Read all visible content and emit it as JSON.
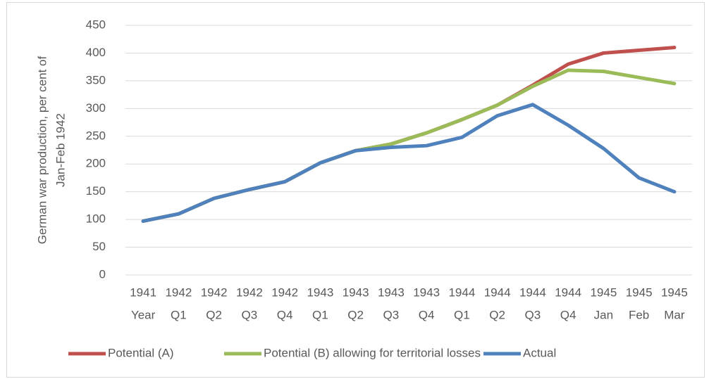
{
  "chart_data": {
    "type": "line",
    "y_label": [
      "German war production, per cent of",
      "Jan-Feb 1942"
    ],
    "categories": [
      [
        "1941",
        "Year"
      ],
      [
        "1942",
        "Q1"
      ],
      [
        "1942",
        "Q2"
      ],
      [
        "1942",
        "Q3"
      ],
      [
        "1942",
        "Q4"
      ],
      [
        "1943",
        "Q1"
      ],
      [
        "1943",
        "Q2"
      ],
      [
        "1943",
        "Q3"
      ],
      [
        "1943",
        "Q4"
      ],
      [
        "1944",
        "Q1"
      ],
      [
        "1944",
        "Q2"
      ],
      [
        "1944",
        "Q3"
      ],
      [
        "1944",
        "Q4"
      ],
      [
        "1945",
        "Jan"
      ],
      [
        "1945",
        "Feb"
      ],
      [
        "1945",
        "Mar"
      ]
    ],
    "series": [
      {
        "name": "Potential (A)",
        "color": "#c0504d",
        "values": [
          97,
          110,
          138,
          154,
          168,
          202,
          224,
          236,
          256,
          280,
          306,
          342,
          380,
          400,
          405,
          410
        ]
      },
      {
        "name": "Potential (B) allowing for territorial losses",
        "color": "#9bbb59",
        "values": [
          97,
          110,
          138,
          154,
          168,
          202,
          224,
          236,
          256,
          280,
          306,
          340,
          369,
          367,
          356,
          345
        ]
      },
      {
        "name": "Actual",
        "color": "#4f81bd",
        "values": [
          97,
          110,
          138,
          154,
          168,
          202,
          224,
          230,
          233,
          248,
          287,
          307,
          270,
          228,
          175,
          150
        ]
      }
    ],
    "ylim": [
      0,
      450
    ],
    "yticks": [
      0,
      50,
      100,
      150,
      200,
      250,
      300,
      350,
      400,
      450
    ],
    "grid": true,
    "legend": "bottom"
  }
}
